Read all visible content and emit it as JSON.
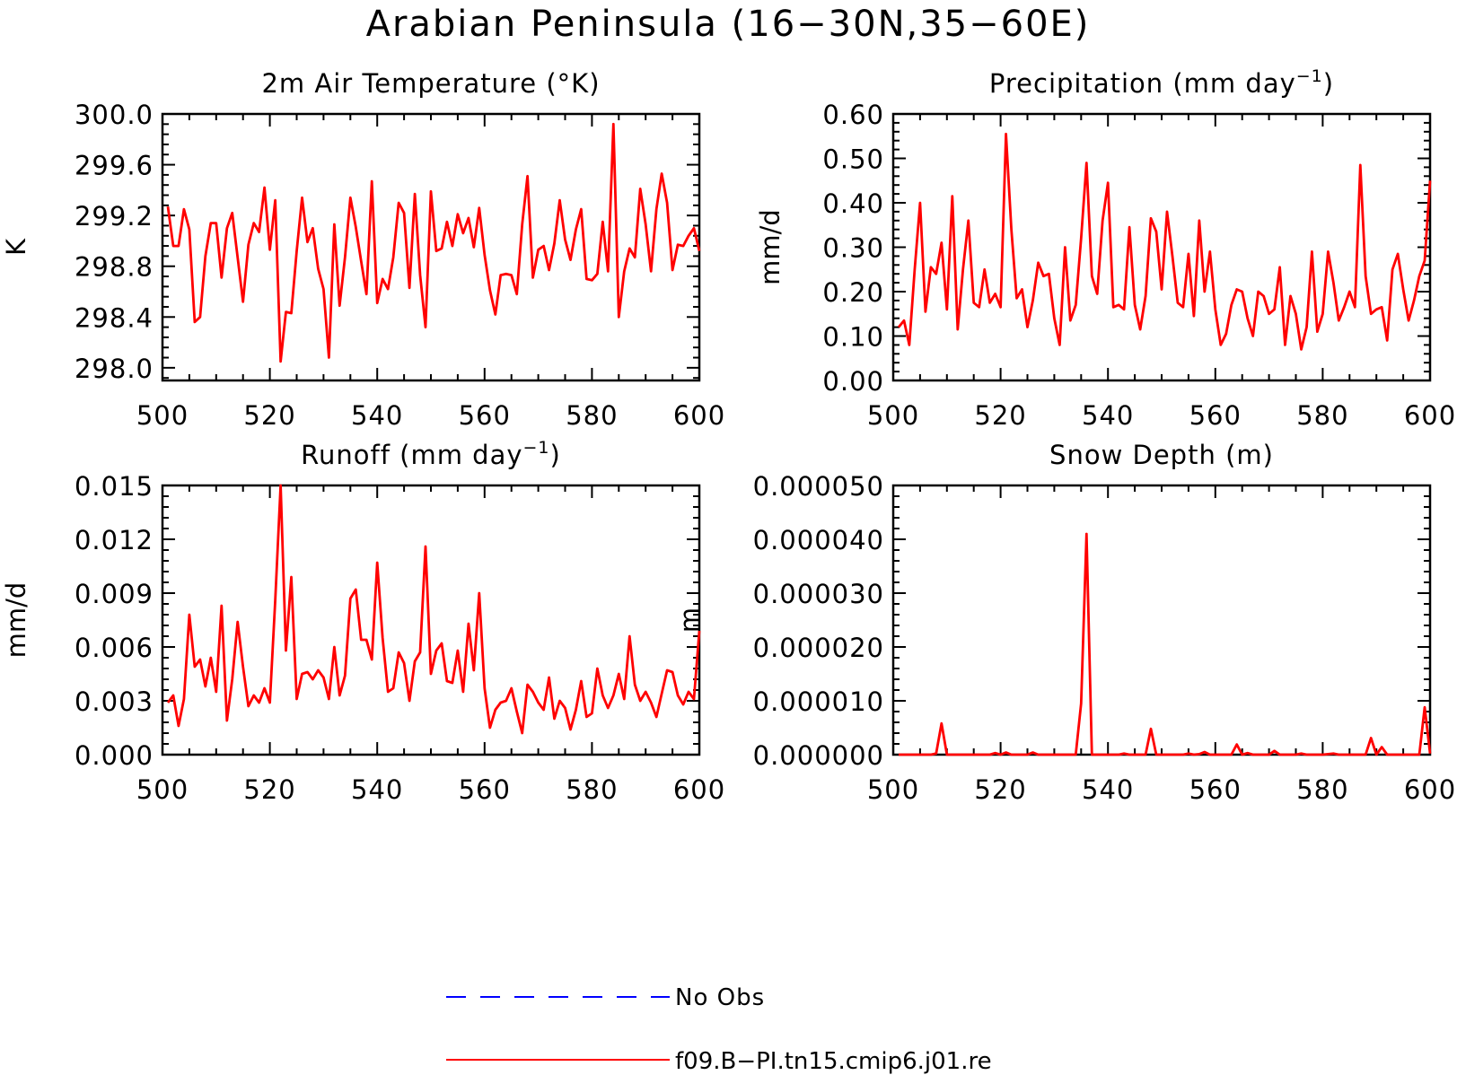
{
  "page_title": "Arabian Peninsula (16−30N,35−60E)",
  "colors": {
    "model": "#ff0000",
    "obs": "#0000ff",
    "axis": "#000000"
  },
  "legend": {
    "obs_label": "No Obs",
    "model_label": "f09.B−PI.tn15.cmip6.j01.re"
  },
  "chart_data": [
    {
      "type": "line",
      "title": "2m Air Temperature (°K)",
      "ylabel": "K",
      "xlim": [
        500,
        600
      ],
      "ylim": [
        297.9,
        300.0
      ],
      "xticks": [
        500,
        520,
        540,
        560,
        580,
        600
      ],
      "yticks": [
        298.0,
        298.4,
        298.8,
        299.2,
        299.6,
        300.0
      ],
      "ytick_labels": [
        "298.0",
        "298.4",
        "298.8",
        "299.2",
        "299.6",
        "300.0"
      ],
      "grid": false,
      "series": [
        {
          "name": "f09.B−PI.tn15.cmip6.j01.re",
          "x": [
            501,
            502,
            503,
            504,
            505,
            506,
            507,
            508,
            509,
            510,
            511,
            512,
            513,
            514,
            515,
            516,
            517,
            518,
            519,
            520,
            521,
            522,
            523,
            524,
            525,
            526,
            527,
            528,
            529,
            530,
            531,
            532,
            533,
            534,
            535,
            536,
            537,
            538,
            539,
            540,
            541,
            542,
            543,
            544,
            545,
            546,
            547,
            548,
            549,
            550,
            551,
            552,
            553,
            554,
            555,
            556,
            557,
            558,
            559,
            560,
            561,
            562,
            563,
            564,
            565,
            566,
            567,
            568,
            569,
            570,
            571,
            572,
            573,
            574,
            575,
            576,
            577,
            578,
            579,
            580,
            581,
            582,
            583,
            584,
            585,
            586,
            587,
            588,
            589,
            590,
            591,
            592,
            593,
            594,
            595,
            596,
            597,
            598,
            599,
            600
          ],
          "values": [
            299.27,
            298.96,
            298.96,
            299.25,
            299.09,
            298.36,
            298.4,
            298.88,
            299.14,
            299.14,
            298.71,
            299.1,
            299.22,
            298.87,
            298.52,
            298.97,
            299.14,
            299.07,
            299.42,
            298.93,
            299.32,
            298.05,
            298.44,
            298.43,
            298.92,
            299.34,
            298.99,
            299.1,
            298.78,
            298.62,
            298.08,
            299.13,
            298.49,
            298.87,
            299.34,
            299.11,
            298.84,
            298.58,
            299.47,
            298.51,
            298.7,
            298.62,
            298.87,
            299.3,
            299.22,
            298.63,
            299.37,
            298.73,
            298.32,
            299.39,
            298.92,
            298.94,
            299.15,
            298.96,
            299.21,
            299.06,
            299.18,
            298.95,
            299.26,
            298.89,
            298.61,
            298.42,
            298.73,
            298.74,
            298.73,
            298.58,
            299.13,
            299.51,
            298.71,
            298.93,
            298.96,
            298.77,
            298.98,
            299.32,
            299.01,
            298.85,
            299.09,
            299.25,
            298.7,
            298.69,
            298.74,
            299.15,
            298.76,
            299.92,
            298.4,
            298.76,
            298.94,
            298.87,
            299.41,
            299.13,
            298.76,
            299.25,
            299.53,
            299.3,
            298.77,
            298.97,
            298.96,
            299.04,
            299.1,
            298.92
          ]
        }
      ]
    },
    {
      "type": "line",
      "title": "Precipitation (mm day",
      "title_sup": "−1",
      "title_end": ")",
      "ylabel": "mm/d",
      "xlim": [
        500,
        600
      ],
      "ylim": [
        0.0,
        0.6
      ],
      "xticks": [
        500,
        520,
        540,
        560,
        580,
        600
      ],
      "yticks": [
        0.0,
        0.1,
        0.2,
        0.3,
        0.4,
        0.5,
        0.6
      ],
      "ytick_labels": [
        "0.00",
        "0.10",
        "0.20",
        "0.30",
        "0.40",
        "0.50",
        "0.60"
      ],
      "grid": false,
      "series": [
        {
          "name": "f09.B−PI.tn15.cmip6.j01.re",
          "x": [
            501,
            502,
            503,
            504,
            505,
            506,
            507,
            508,
            509,
            510,
            511,
            512,
            513,
            514,
            515,
            516,
            517,
            518,
            519,
            520,
            521,
            522,
            523,
            524,
            525,
            526,
            527,
            528,
            529,
            530,
            531,
            532,
            533,
            534,
            535,
            536,
            537,
            538,
            539,
            540,
            541,
            542,
            543,
            544,
            545,
            546,
            547,
            548,
            549,
            550,
            551,
            552,
            553,
            554,
            555,
            556,
            557,
            558,
            559,
            560,
            561,
            562,
            563,
            564,
            565,
            566,
            567,
            568,
            569,
            570,
            571,
            572,
            573,
            574,
            575,
            576,
            577,
            578,
            579,
            580,
            581,
            582,
            583,
            584,
            585,
            586,
            587,
            588,
            589,
            590,
            591,
            592,
            593,
            594,
            595,
            596,
            597,
            598,
            599,
            600
          ],
          "values": [
            0.12,
            0.135,
            0.08,
            0.25,
            0.4,
            0.155,
            0.255,
            0.24,
            0.31,
            0.16,
            0.415,
            0.115,
            0.25,
            0.36,
            0.175,
            0.165,
            0.25,
            0.175,
            0.195,
            0.165,
            0.555,
            0.34,
            0.185,
            0.205,
            0.12,
            0.18,
            0.265,
            0.235,
            0.24,
            0.14,
            0.08,
            0.3,
            0.135,
            0.17,
            0.32,
            0.49,
            0.235,
            0.195,
            0.36,
            0.445,
            0.165,
            0.17,
            0.16,
            0.345,
            0.17,
            0.115,
            0.19,
            0.365,
            0.335,
            0.205,
            0.38,
            0.28,
            0.175,
            0.165,
            0.285,
            0.145,
            0.36,
            0.2,
            0.29,
            0.16,
            0.08,
            0.105,
            0.17,
            0.205,
            0.2,
            0.14,
            0.1,
            0.2,
            0.19,
            0.15,
            0.16,
            0.255,
            0.08,
            0.19,
            0.15,
            0.07,
            0.12,
            0.29,
            0.11,
            0.15,
            0.29,
            0.22,
            0.135,
            0.165,
            0.2,
            0.165,
            0.485,
            0.235,
            0.15,
            0.16,
            0.165,
            0.09,
            0.25,
            0.285,
            0.205,
            0.135,
            0.18,
            0.235,
            0.27,
            0.45
          ]
        }
      ]
    },
    {
      "type": "line",
      "title": "Runoff (mm day",
      "title_sup": "−1",
      "title_end": ")",
      "ylabel": "mm/d",
      "xlim": [
        500,
        600
      ],
      "ylim": [
        0.0,
        0.015
      ],
      "xticks": [
        500,
        520,
        540,
        560,
        580,
        600
      ],
      "yticks": [
        0.0,
        0.003,
        0.006,
        0.009,
        0.012,
        0.015
      ],
      "ytick_labels": [
        "0.000",
        "0.003",
        "0.006",
        "0.009",
        "0.012",
        "0.015"
      ],
      "grid": false,
      "series": [
        {
          "name": "f09.B−PI.tn15.cmip6.j01.re",
          "x": [
            501,
            502,
            503,
            504,
            505,
            506,
            507,
            508,
            509,
            510,
            511,
            512,
            513,
            514,
            515,
            516,
            517,
            518,
            519,
            520,
            521,
            522,
            523,
            524,
            525,
            526,
            527,
            528,
            529,
            530,
            531,
            532,
            533,
            534,
            535,
            536,
            537,
            538,
            539,
            540,
            541,
            542,
            543,
            544,
            545,
            546,
            547,
            548,
            549,
            550,
            551,
            552,
            553,
            554,
            555,
            556,
            557,
            558,
            559,
            560,
            561,
            562,
            563,
            564,
            565,
            566,
            567,
            568,
            569,
            570,
            571,
            572,
            573,
            574,
            575,
            576,
            577,
            578,
            579,
            580,
            581,
            582,
            583,
            584,
            585,
            586,
            587,
            588,
            589,
            590,
            591,
            592,
            593,
            594,
            595,
            596,
            597,
            598,
            599,
            600
          ],
          "values": [
            0.0029,
            0.0033,
            0.0016,
            0.0031,
            0.0078,
            0.0049,
            0.0053,
            0.0038,
            0.0054,
            0.0035,
            0.0083,
            0.0019,
            0.0042,
            0.0074,
            0.0049,
            0.0027,
            0.0033,
            0.0029,
            0.0037,
            0.0029,
            0.0086,
            0.015,
            0.0058,
            0.0099,
            0.0031,
            0.0045,
            0.0046,
            0.0042,
            0.0047,
            0.0043,
            0.0031,
            0.006,
            0.0033,
            0.0044,
            0.0087,
            0.0092,
            0.0064,
            0.0064,
            0.0053,
            0.0107,
            0.0065,
            0.0035,
            0.0037,
            0.0057,
            0.0051,
            0.003,
            0.0052,
            0.0057,
            0.0116,
            0.0045,
            0.0058,
            0.0062,
            0.0041,
            0.004,
            0.0058,
            0.0035,
            0.0073,
            0.0047,
            0.009,
            0.0037,
            0.0015,
            0.0025,
            0.0029,
            0.003,
            0.0037,
            0.0024,
            0.0012,
            0.0039,
            0.0035,
            0.0029,
            0.0025,
            0.0043,
            0.002,
            0.003,
            0.0026,
            0.0014,
            0.0025,
            0.0041,
            0.0021,
            0.0023,
            0.0048,
            0.0033,
            0.0026,
            0.0033,
            0.0045,
            0.0031,
            0.0066,
            0.0039,
            0.003,
            0.0035,
            0.0029,
            0.0021,
            0.0034,
            0.0047,
            0.0046,
            0.0033,
            0.0028,
            0.0035,
            0.0031,
            0.0069
          ]
        }
      ]
    },
    {
      "type": "line",
      "title": "Snow Depth (m)",
      "ylabel": "m",
      "xlim": [
        500,
        600
      ],
      "ylim": [
        0.0,
        5e-05
      ],
      "xticks": [
        500,
        520,
        540,
        560,
        580,
        600
      ],
      "yticks": [
        0.0,
        1e-05,
        2e-05,
        3e-05,
        4e-05,
        5e-05
      ],
      "ytick_labels": [
        "0.000000",
        "0.000010",
        "0.000020",
        "0.000030",
        "0.000040",
        "0.000050"
      ],
      "grid": false,
      "series": [
        {
          "name": "f09.B−PI.tn15.cmip6.j01.re",
          "x": [
            501,
            502,
            503,
            504,
            505,
            506,
            507,
            508,
            509,
            510,
            511,
            512,
            513,
            514,
            515,
            516,
            517,
            518,
            519,
            520,
            521,
            522,
            523,
            524,
            525,
            526,
            527,
            528,
            529,
            530,
            531,
            532,
            533,
            534,
            535,
            536,
            537,
            538,
            539,
            540,
            541,
            542,
            543,
            544,
            545,
            546,
            547,
            548,
            549,
            550,
            551,
            552,
            553,
            554,
            555,
            556,
            557,
            558,
            559,
            560,
            561,
            562,
            563,
            564,
            565,
            566,
            567,
            568,
            569,
            570,
            571,
            572,
            573,
            574,
            575,
            576,
            577,
            578,
            579,
            580,
            581,
            582,
            583,
            584,
            585,
            586,
            587,
            588,
            589,
            590,
            591,
            592,
            593,
            594,
            595,
            596,
            597,
            598,
            599,
            600
          ],
          "values": [
            0,
            0,
            0,
            0,
            0,
            0,
            0,
            2e-07,
            5.8e-06,
            0,
            0,
            0,
            0,
            0,
            0,
            0,
            0,
            0,
            3e-07,
            0,
            4e-07,
            0,
            0,
            0,
            0,
            4e-07,
            0,
            0,
            0,
            0,
            0,
            0,
            0,
            0,
            9.5e-06,
            4.1e-05,
            0,
            0,
            0,
            0,
            0,
            0,
            2e-07,
            0,
            0,
            0,
            0,
            4.8e-06,
            0,
            0,
            0,
            0,
            0,
            0,
            2e-07,
            0,
            1e-07,
            5e-07,
            0,
            0,
            0,
            0,
            0,
            1.9e-06,
            0,
            3e-07,
            0,
            0,
            0,
            0,
            7e-07,
            0,
            0,
            0,
            0,
            2e-07,
            0,
            0,
            0,
            0,
            1e-07,
            2e-07,
            0,
            0,
            0,
            0,
            0,
            0,
            3.1e-06,
            0,
            1.4e-06,
            0,
            0,
            0,
            0,
            0,
            0,
            0,
            8.8e-06,
            2e-07
          ]
        }
      ]
    }
  ]
}
